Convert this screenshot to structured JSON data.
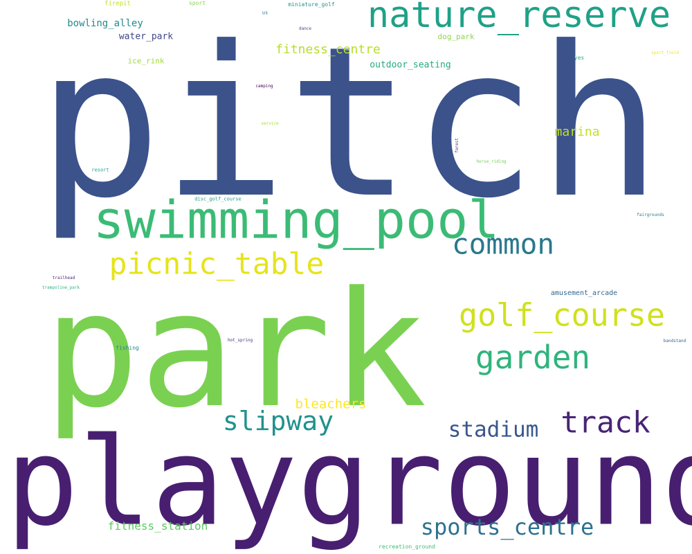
{
  "words": [
    {
      "text": "pitch",
      "color": "#3b528b"
    },
    {
      "text": "park",
      "color": "#7ad151"
    },
    {
      "text": "playground",
      "color": "#481f70"
    },
    {
      "text": "nature_reserve",
      "color": "#1fa187"
    },
    {
      "text": "swimming_pool",
      "color": "#3bbb75"
    },
    {
      "text": "common",
      "color": "#2a788e"
    },
    {
      "text": "picnic_table",
      "color": "#e5e419"
    },
    {
      "text": "golf_course",
      "color": "#d0e11c"
    },
    {
      "text": "garden",
      "color": "#2fb47c"
    },
    {
      "text": "track",
      "color": "#482475"
    },
    {
      "text": "slipway",
      "color": "#21918c"
    },
    {
      "text": "stadium",
      "color": "#39568c"
    },
    {
      "text": "sports_centre",
      "color": "#2c728e"
    },
    {
      "text": "bleachers",
      "color": "#fde725"
    },
    {
      "text": "fitness_station",
      "color": "#5ec962"
    },
    {
      "text": "marina",
      "color": "#c2df23"
    },
    {
      "text": "fitness_centre",
      "color": "#b5de2b"
    },
    {
      "text": "bowling_alley",
      "color": "#23898e"
    },
    {
      "text": "water_park",
      "color": "#404688"
    },
    {
      "text": "outdoor_seating",
      "color": "#25ac82"
    },
    {
      "text": "ice_rink",
      "color": "#a0da39"
    },
    {
      "text": "dog_park",
      "color": "#8ed645"
    },
    {
      "text": "amusement_arcade",
      "color": "#31688e"
    },
    {
      "text": "firepit",
      "color": "#bddf26"
    },
    {
      "text": "sport",
      "color": "#86d549"
    },
    {
      "text": "miniature_golf",
      "color": "#20928c"
    },
    {
      "text": "us",
      "color": "#2b758e"
    },
    {
      "text": "dance",
      "color": "#3f4889"
    },
    {
      "text": "yes",
      "color": "#29af7f"
    },
    {
      "text": "sport_field",
      "color": "#f1e51d"
    },
    {
      "text": "camping",
      "color": "#440154"
    },
    {
      "text": "service",
      "color": "#a8db34"
    },
    {
      "text": "forest",
      "color": "#46327e"
    },
    {
      "text": "resort",
      "color": "#1e9b8a"
    },
    {
      "text": "horse_riding",
      "color": "#70cf57"
    },
    {
      "text": "disc_golf_course",
      "color": "#1f988b"
    },
    {
      "text": "fairgrounds",
      "color": "#297b8e"
    },
    {
      "text": "trailhead",
      "color": "#482878"
    },
    {
      "text": "trampoline_park",
      "color": "#2db27d"
    },
    {
      "text": "fishing",
      "color": "#24878e"
    },
    {
      "text": "hot_spring",
      "color": "#472d7b"
    },
    {
      "text": "bandstand",
      "color": "#355f8d"
    },
    {
      "text": "recreation_ground",
      "color": "#3dbc74"
    }
  ]
}
